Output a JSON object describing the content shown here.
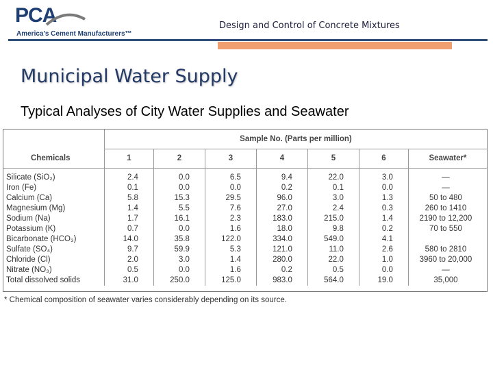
{
  "header": {
    "logo_text": "PCA",
    "logo_tagline": "America's Cement Manufacturers™",
    "doc_title": "Design and Control of Concrete Mixtures",
    "colors": {
      "navy": "#2f4f7a",
      "orange": "#f0a070"
    }
  },
  "slide": {
    "title": "Municipal Water Supply",
    "subtitle": "Typical Analyses of City Water Supplies and Seawater"
  },
  "table": {
    "group_header": "Sample No. (Parts per million)",
    "chemicals_header": "Chemicals",
    "columns": [
      "1",
      "2",
      "3",
      "4",
      "5",
      "6",
      "Seawater*"
    ],
    "rows": [
      {
        "chemical": "Silicate (SiO₂)",
        "values": [
          "2.4",
          "0.0",
          "6.5",
          "9.4",
          "22.0",
          "3.0",
          "—"
        ]
      },
      {
        "chemical": "Iron (Fe)",
        "values": [
          "0.1",
          "0.0",
          "0.0",
          "0.2",
          "0.1",
          "0.0",
          "—"
        ]
      },
      {
        "chemical": "Calcium (Ca)",
        "values": [
          "5.8",
          "15.3",
          "29.5",
          "96.0",
          "3.0",
          "1.3",
          "50 to 480"
        ]
      },
      {
        "chemical": "Magnesium (Mg)",
        "values": [
          "1.4",
          "5.5",
          "7.6",
          "27.0",
          "2.4",
          "0.3",
          "260 to 1410"
        ]
      },
      {
        "chemical": "Sodium (Na)",
        "values": [
          "1.7",
          "16.1",
          "2.3",
          "183.0",
          "215.0",
          "1.4",
          "2190 to 12,200"
        ]
      },
      {
        "chemical": "Potassium (K)",
        "values": [
          "0.7",
          "0.0",
          "1.6",
          "18.0",
          "9.8",
          "0.2",
          "70 to 550"
        ]
      },
      {
        "chemical": "Bicarbonate (HCO₃)",
        "values": [
          "14.0",
          "35.8",
          "122.0",
          "334.0",
          "549.0",
          "4.1",
          ""
        ]
      },
      {
        "chemical": "Sulfate (SO₄)",
        "values": [
          "9.7",
          "59.9",
          "5.3",
          "121.0",
          "11.0",
          "2.6",
          "580 to 2810"
        ]
      },
      {
        "chemical": "Chloride (Cl)",
        "values": [
          "2.0",
          "3.0",
          "1.4",
          "280.0",
          "22.0",
          "1.0",
          "3960 to 20,000"
        ]
      },
      {
        "chemical": "Nitrate (NO₃)",
        "values": [
          "0.5",
          "0.0",
          "1.6",
          "0.2",
          "0.5",
          "0.0",
          "—"
        ]
      },
      {
        "chemical": "Total dissolved solids",
        "values": [
          "31.0",
          "250.0",
          "125.0",
          "983.0",
          "564.0",
          "19.0",
          "35,000"
        ]
      }
    ],
    "footnote": "* Chemical composition of seawater varies considerably depending on its source."
  }
}
